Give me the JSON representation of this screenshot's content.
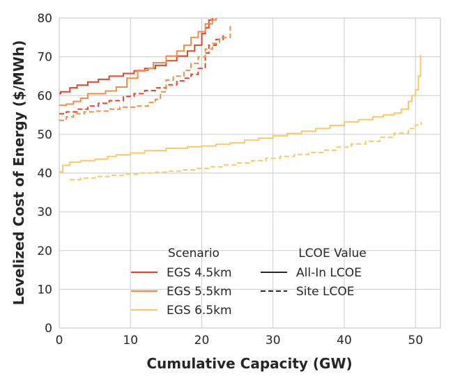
{
  "chart_data": {
    "type": "line",
    "xlabel": "Cumulative Capacity (GW)",
    "ylabel": "Levelized Cost of Energy ($/MWh)",
    "xlim": [
      0,
      53.5
    ],
    "ylim": [
      0,
      80
    ],
    "xticks": [
      0,
      10,
      20,
      30,
      40,
      50
    ],
    "yticks": [
      0,
      10,
      20,
      30,
      40,
      50,
      60,
      70,
      80
    ],
    "grid": true,
    "legend_placement": "lower-center",
    "legend": {
      "scenario_title": "Scenario",
      "lcoe_title": "LCOE Value",
      "scenarios": [
        {
          "label": "EGS 4.5km",
          "color": "#e8432a"
        },
        {
          "label": "EGS 5.5km",
          "color": "#f28d44"
        },
        {
          "label": "EGS 6.5km",
          "color": "#fcc865"
        }
      ],
      "styles": [
        {
          "label": "All-In LCOE",
          "dash": "solid"
        },
        {
          "label": "Site LCOE",
          "dash": "dashed"
        }
      ]
    },
    "series": [
      {
        "scenario": 0,
        "style": "solid",
        "x": [
          0,
          0.2,
          1.5,
          2.5,
          4,
          5.5,
          7,
          9,
          10.5,
          12,
          13.5,
          15,
          16.5,
          18,
          19,
          20,
          20.5,
          21,
          21.5
        ],
        "y": [
          60.5,
          61,
          62,
          62.7,
          63.5,
          64.2,
          65,
          65.7,
          66.4,
          67,
          67.8,
          69,
          70.2,
          71.5,
          73,
          76,
          77.5,
          79.5,
          80
        ]
      },
      {
        "scenario": 0,
        "style": "dashed",
        "x": [
          0,
          1,
          2.5,
          4,
          5.5,
          7,
          9,
          10.5,
          12,
          13.5,
          15,
          16.5,
          17.5,
          18.5,
          19.5,
          20.5,
          21,
          22,
          23
        ],
        "y": [
          55.3,
          55.8,
          56.5,
          57.3,
          58,
          58.7,
          59.8,
          60.5,
          61.3,
          62,
          62.8,
          63.8,
          64.5,
          65.5,
          67,
          71,
          73,
          74.5,
          76
        ]
      },
      {
        "scenario": 1,
        "style": "solid",
        "x": [
          0,
          1,
          2,
          3,
          4,
          6.5,
          8,
          9.5,
          11,
          12.5,
          13.2,
          15,
          16.5,
          17.5,
          18.5,
          19.5,
          20.5,
          21.5,
          22
        ],
        "y": [
          57.5,
          57.8,
          58.5,
          59.3,
          60.5,
          61.2,
          62.2,
          64.5,
          66.5,
          67,
          68.5,
          70.2,
          71.5,
          73,
          75,
          76.5,
          78.5,
          79.5,
          80
        ]
      },
      {
        "scenario": 1,
        "style": "dashed",
        "x": [
          0,
          1,
          2,
          3.5,
          5,
          7,
          8.5,
          11,
          12.5,
          13.5,
          14.2,
          15,
          16,
          17.5,
          18.5,
          19.5,
          20.5,
          21.5,
          22.5,
          24
        ],
        "y": [
          53.6,
          54.5,
          55.3,
          55.8,
          56,
          56.5,
          57,
          57.3,
          58.2,
          59,
          61,
          64,
          65,
          66.5,
          68.3,
          70,
          72,
          73.5,
          75,
          78
        ]
      },
      {
        "scenario": 2,
        "style": "solid",
        "x": [
          0,
          0.5,
          1.5,
          3,
          5,
          6.8,
          8,
          10,
          12,
          15,
          18,
          20,
          22,
          24,
          26,
          28,
          30,
          32,
          34,
          36,
          38,
          40,
          42,
          44,
          45.5,
          47,
          48,
          49,
          49.5,
          50,
          50.4,
          50.7
        ],
        "y": [
          40.3,
          42,
          42.8,
          43.2,
          43.6,
          44.3,
          44.7,
          45.2,
          45.8,
          46.4,
          46.8,
          47,
          47.4,
          47.8,
          48.5,
          49,
          49.6,
          50.2,
          50.8,
          51.5,
          52.3,
          53.2,
          53.8,
          54.5,
          55,
          55.5,
          56.5,
          58.5,
          60,
          61.5,
          65,
          70.5
        ]
      },
      {
        "scenario": 2,
        "style": "dashed",
        "x": [
          1.5,
          3,
          5,
          7,
          9,
          11,
          13,
          15,
          17,
          19,
          21,
          23,
          25,
          27,
          29,
          31,
          33,
          35,
          37,
          39,
          41,
          43,
          45,
          47,
          49,
          50,
          50.8
        ],
        "y": [
          38.3,
          38.7,
          39.1,
          39.4,
          39.7,
          40,
          40.2,
          40.5,
          40.8,
          41.2,
          41.6,
          42.1,
          42.6,
          43.2,
          43.8,
          44.3,
          44.8,
          45.3,
          45.9,
          46.7,
          47.5,
          48.2,
          49.2,
          50.3,
          51.5,
          52.4,
          53.2
        ]
      }
    ]
  }
}
